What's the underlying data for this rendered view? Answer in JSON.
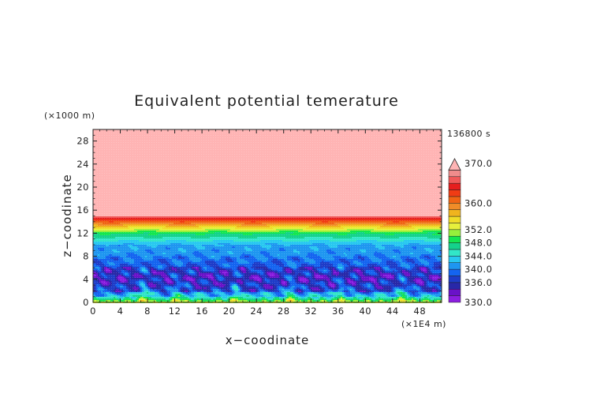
{
  "chart_data": {
    "type": "heatmap",
    "title": "Equivalent potential temerature",
    "xlabel": "x−coodinate",
    "ylabel": "z−coodinate",
    "x_unit": "(×1E4 m)",
    "y_unit": "(×1000 m)",
    "time_label": "136800 s",
    "xlim": [
      0,
      51.2
    ],
    "ylim": [
      0,
      30
    ],
    "x_ticks": [
      "0",
      "4",
      "8",
      "12",
      "16",
      "20",
      "24",
      "28",
      "32",
      "36",
      "40",
      "44",
      "48"
    ],
    "y_ticks": [
      "0",
      "4",
      "8",
      "12",
      "16",
      "20",
      "24",
      "28"
    ],
    "colorbar": {
      "min": 330,
      "max": 370,
      "extend": "max",
      "tick_labels": [
        "330.0",
        "336.0",
        "340.0",
        "344.0",
        "348.0",
        "352.0",
        "360.0",
        "370.0"
      ],
      "levels": [
        330,
        332,
        334,
        336,
        338,
        340,
        342,
        344,
        346,
        348,
        350,
        352,
        354,
        356,
        358,
        360,
        362,
        364,
        366,
        368,
        370
      ],
      "colors": [
        "#8c1ee0",
        "#6a12c8",
        "#2828a8",
        "#1e3cc8",
        "#1464f0",
        "#1e96f0",
        "#28c8f0",
        "#32e6c8",
        "#14d28c",
        "#14e650",
        "#96f03c",
        "#e6f03c",
        "#f0dc28",
        "#f0b41e",
        "#f08c28",
        "#f06414",
        "#f03c14",
        "#e61e1e",
        "#f05a5a",
        "#f08c8c",
        "#ffb4b4"
      ]
    },
    "field_description_layers": [
      {
        "z_range": [
          15,
          30
        ],
        "value": "> 370"
      },
      {
        "z_range": [
          14,
          15
        ],
        "value": "360-368"
      },
      {
        "z_range": [
          12,
          14
        ],
        "value": "350-358"
      },
      {
        "z_range": [
          10,
          12
        ],
        "value": "342-348"
      },
      {
        "z_range": [
          6,
          10
        ],
        "value": "338-342"
      },
      {
        "z_range": [
          2,
          6
        ],
        "value": "330-336"
      },
      {
        "z_range": [
          0,
          2
        ],
        "value": "340-352"
      }
    ]
  }
}
